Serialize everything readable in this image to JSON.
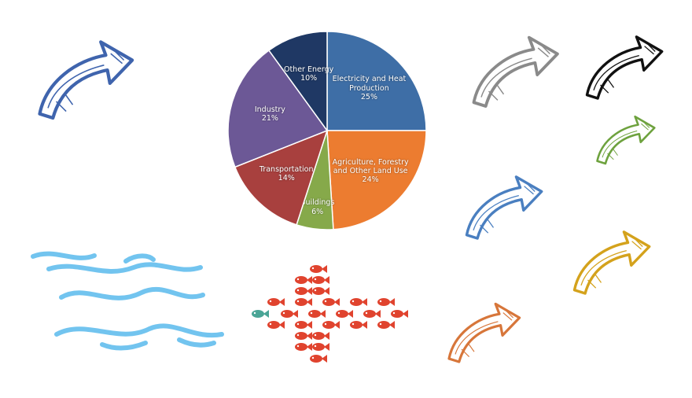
{
  "chart_data": {
    "type": "pie",
    "categories": [
      "Electricity and Heat Production",
      "Agriculture, Forestry and Other Land Use",
      "Buildings",
      "Transportation",
      "Industry",
      "Other Energy"
    ],
    "values": [
      25,
      24,
      6,
      14,
      21,
      10
    ],
    "value_labels": [
      "25%",
      "24%",
      "6%",
      "14%",
      "21%",
      "10%"
    ],
    "colors": [
      "#3e6ea6",
      "#ec7c30",
      "#86a94a",
      "#a8403e",
      "#6c5896",
      "#1f3864"
    ]
  }
}
